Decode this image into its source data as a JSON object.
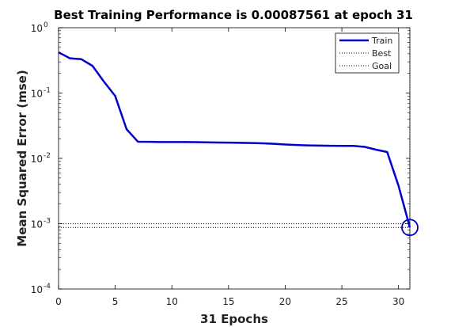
{
  "chart_data": {
    "type": "line",
    "title": "Best Training Performance is 0.00087561 at epoch 31",
    "xlabel": "31 Epochs",
    "ylabel": "Mean Squared Error  (mse)",
    "xlim": [
      0,
      31
    ],
    "ylim": [
      0.0001,
      1
    ],
    "yscale": "log",
    "x_ticks": [
      "0",
      "5",
      "10",
      "15",
      "20",
      "25",
      "30"
    ],
    "x_tick_values": [
      0,
      5,
      10,
      15,
      20,
      25,
      30
    ],
    "y_ticks": [
      {
        "value": 1,
        "base": "10",
        "exp": "0"
      },
      {
        "value": 0.1,
        "base": "10",
        "exp": "-1"
      },
      {
        "value": 0.01,
        "base": "10",
        "exp": "-2"
      },
      {
        "value": 0.001,
        "base": "10",
        "exp": "-3"
      },
      {
        "value": 0.0001,
        "base": "10",
        "exp": "-4"
      }
    ],
    "grid": false,
    "legend_position": "top-right",
    "series": [
      {
        "name": "Train",
        "color": "#0000cc",
        "style": "solid",
        "x": [
          0,
          1,
          2,
          3,
          4,
          5,
          6,
          7,
          8,
          9,
          10,
          11,
          12,
          13,
          14,
          15,
          16,
          17,
          18,
          19,
          20,
          21,
          22,
          23,
          24,
          25,
          26,
          27,
          28,
          29,
          30,
          31
        ],
        "y": [
          0.42,
          0.34,
          0.33,
          0.26,
          0.15,
          0.09,
          0.028,
          0.018,
          0.0179,
          0.0178,
          0.0178,
          0.0178,
          0.0177,
          0.0176,
          0.0175,
          0.0174,
          0.0173,
          0.0172,
          0.017,
          0.0167,
          0.0163,
          0.016,
          0.0158,
          0.0157,
          0.0156,
          0.0155,
          0.0155,
          0.015,
          0.0136,
          0.0125,
          0.0038,
          0.00087561
        ]
      },
      {
        "name": "Best",
        "color": "#000000",
        "style": "dotted",
        "x_value": 31,
        "y_value": 0.00087561
      },
      {
        "name": "Goal",
        "color": "#000000",
        "style": "dotted",
        "y_value": 0.001
      }
    ],
    "best_marker": {
      "x": 31,
      "y": 0.00087561,
      "color": "#0000cc"
    }
  }
}
